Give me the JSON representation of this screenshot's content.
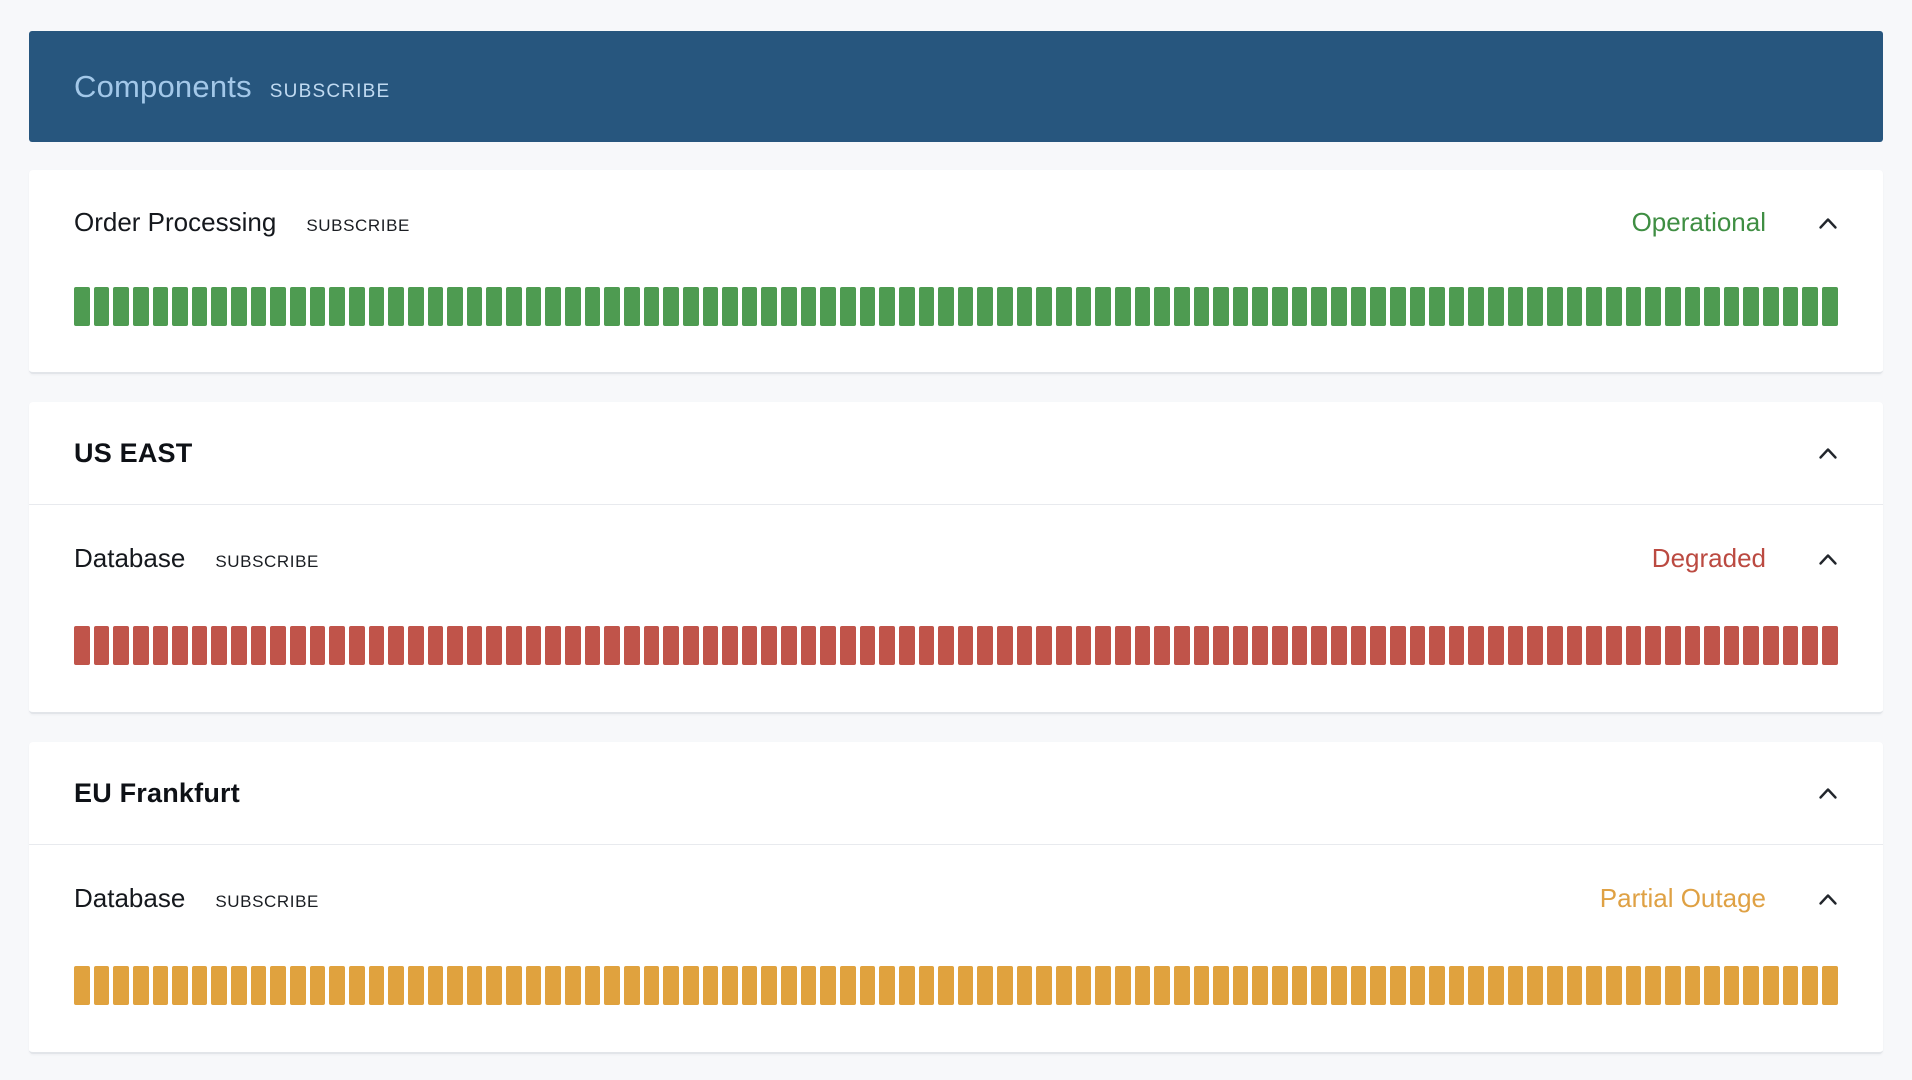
{
  "page": {
    "background_color": "#f7f8fa"
  },
  "header": {
    "title": "Components",
    "subscribe_label": "SUBSCRIBE",
    "background_color": "#27567e",
    "title_color": "#a3c8e9",
    "subscribe_color": "#c0daf1"
  },
  "cards": [
    {
      "name": "Order Processing",
      "subscribe_label": "SUBSCRIBE",
      "status": "Operational",
      "status_color": "#3f8e43",
      "bar_color": "#4e9b51",
      "uptime_days": 90
    },
    {
      "title": "US EAST",
      "components": [
        {
          "name": "Database",
          "subscribe_label": "SUBSCRIBE",
          "status": "Degraded",
          "status_color": "#bb4a41",
          "bar_color": "#c0544a",
          "uptime_days": 90
        }
      ]
    },
    {
      "title": "EU Frankfurt",
      "components": [
        {
          "name": "Database",
          "subscribe_label": "SUBSCRIBE",
          "status": "Partial Outage",
          "status_color": "#dfa144",
          "bar_color": "#e0a23e",
          "uptime_days": 90
        }
      ]
    }
  ]
}
